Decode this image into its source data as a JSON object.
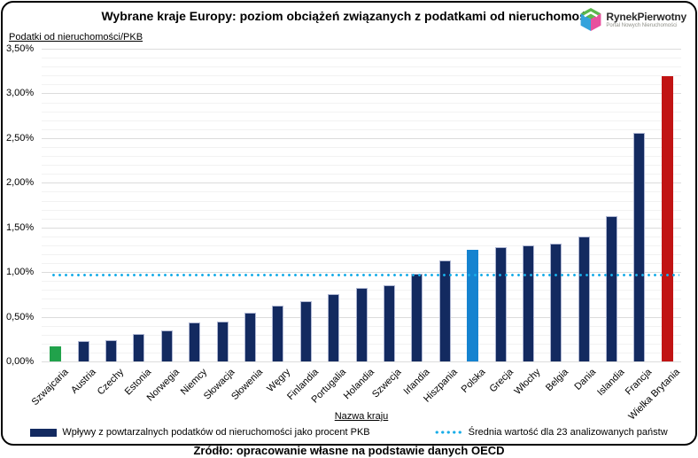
{
  "header": {
    "title": "Wybrane kraje Europy: poziom obciążeń związanych z podatkami od nieruchomości",
    "logo": {
      "name": "RynekPierwotny",
      "tagline": "Portal Nowych Nieruchomości"
    }
  },
  "y_axis_caption": "Podatki od nieruchomości/PKB",
  "x_axis_title": "Nazwa kraju",
  "legend": {
    "series_label": "Wpływy z powtarzalnych podatków od nieruchomości jako procent PKB",
    "average_label": "Średnia wartość dla 23 analizowanych państw"
  },
  "source": "Źródło: opracowanie własne na podstawie danych OECD",
  "colors": {
    "navy": "#132a60",
    "green": "#21a24b",
    "polska_blue": "#1583d0",
    "red": "#c11414",
    "average": "#19ade8"
  },
  "chart_data": {
    "type": "bar",
    "title": "Wybrane kraje Europy: poziom obciążeń związanych z podatkami od nieruchomości",
    "xlabel": "Nazwa kraju",
    "ylabel": "Podatki od nieruchomości/PKB",
    "categories": [
      "Szwajcaria",
      "Austria",
      "Czechy",
      "Estonia",
      "Norwegia",
      "Niemcy",
      "Słowacja",
      "Słowenia",
      "Węgry",
      "Finlandia",
      "Portugalia",
      "Holandia",
      "Szwecja",
      "Irlandia",
      "Hiszpania",
      "Polska",
      "Grecja",
      "Włochy",
      "Belgia",
      "Dania",
      "Islandia",
      "Francja",
      "Wielka Brytania"
    ],
    "values": [
      0.17,
      0.23,
      0.24,
      0.31,
      0.35,
      0.44,
      0.45,
      0.55,
      0.63,
      0.67,
      0.75,
      0.82,
      0.85,
      0.98,
      1.13,
      1.25,
      1.28,
      1.3,
      1.32,
      1.4,
      1.63,
      2.56,
      3.19
    ],
    "unit": "% PKB",
    "special_colors": {
      "0": "green",
      "15": "polska_blue",
      "22": "red"
    },
    "average_line": 0.97,
    "ylim": [
      0,
      3.5
    ],
    "ytick_step": 0.5,
    "minor_step": 0.1,
    "ytick_values": [
      3.5,
      3.0,
      2.5,
      2.0,
      1.5,
      1.0,
      0.5,
      0.0
    ],
    "ytick_labels": [
      "3,50%",
      "3,00%",
      "2,50%",
      "2,00%",
      "1,50%",
      "1,00%",
      "0,50%",
      "0,00%"
    ],
    "grid": true,
    "legend_position": "bottom",
    "legend_entries": [
      "Wpływy z powtarzalnych podatków od nieruchomości jako procent PKB",
      "Średnia wartość dla 23 analizowanych państw"
    ]
  }
}
